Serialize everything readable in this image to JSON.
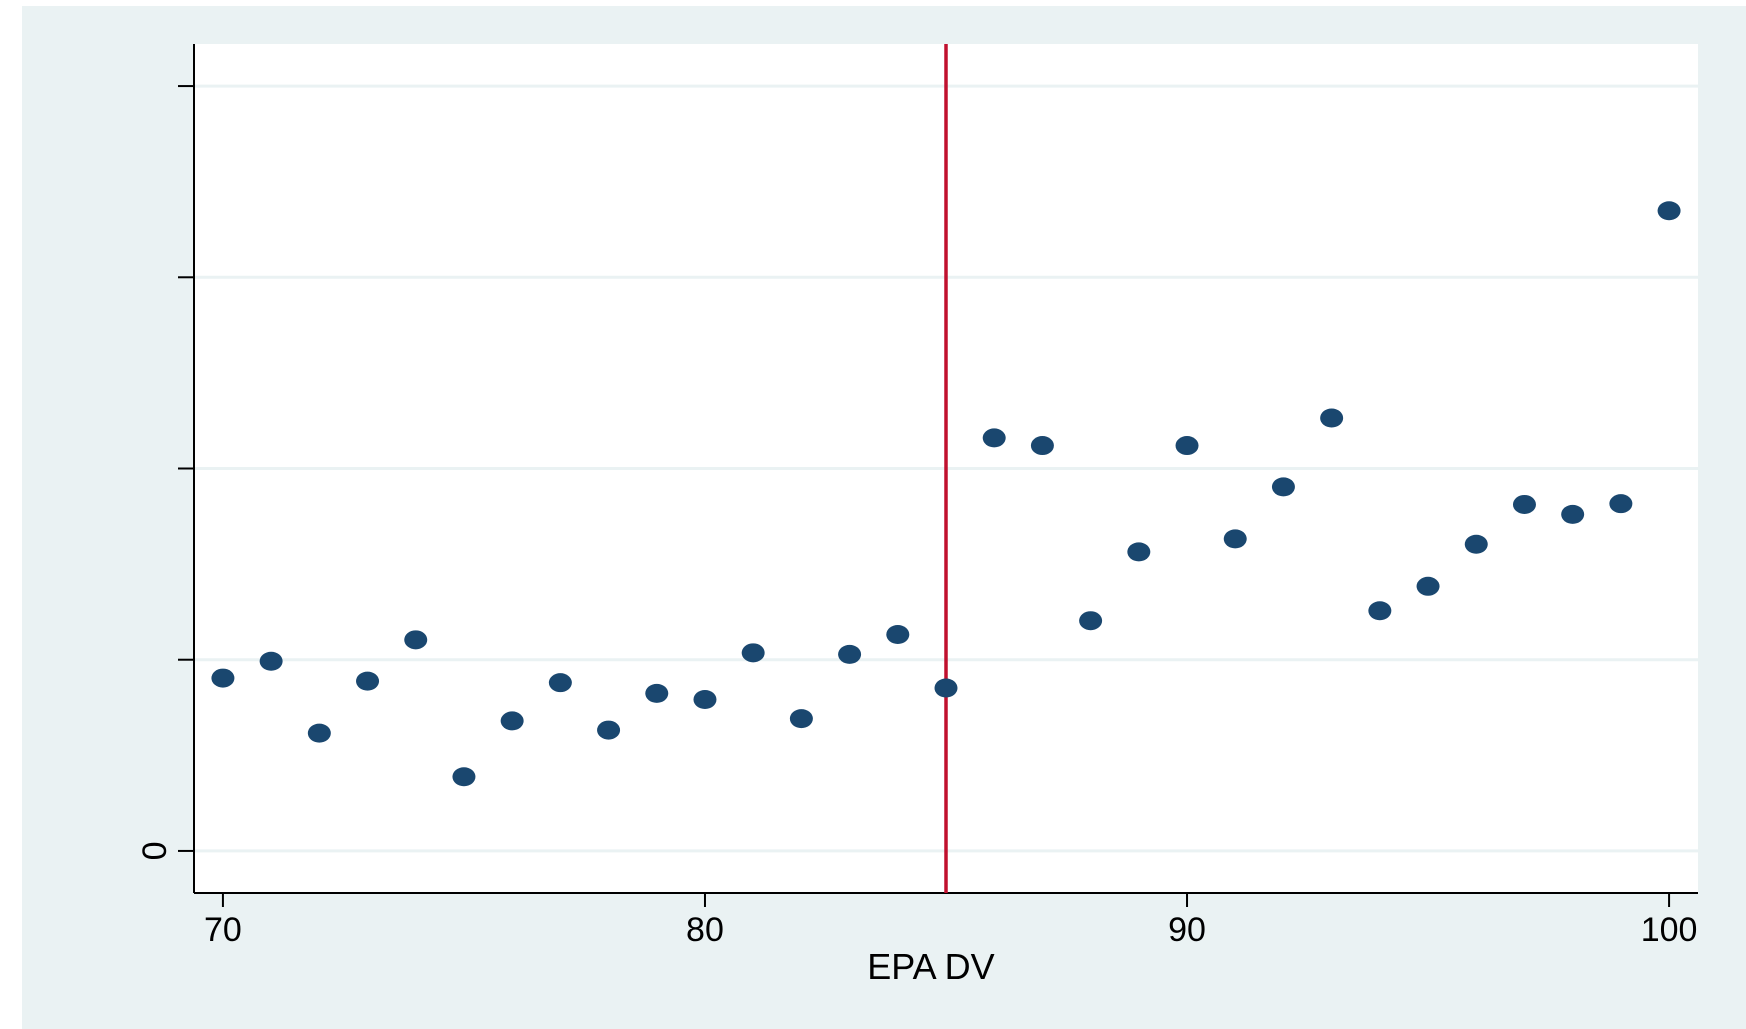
{
  "chart_data": {
    "type": "scatter",
    "title": "",
    "xlabel": "EPA DV",
    "ylabel": "",
    "xlim": [
      69.4,
      100.6
    ],
    "ylim": [
      -0.055,
      1.055
    ],
    "x_ticks": [
      70,
      80,
      90,
      100
    ],
    "x_tick_labels": [
      "70",
      "80",
      "90",
      "100"
    ],
    "y_ticks": [
      0,
      0.25,
      0.5,
      0.75,
      1.0
    ],
    "y_tick_labels": [
      "0",
      "",
      "",
      "",
      ""
    ],
    "grid": true,
    "legend": "none",
    "cutoff_line": {
      "x": 85,
      "color": "#c0102e"
    },
    "series": [
      {
        "color": "#1a476f",
        "points": [
          {
            "x": 70,
            "y": 0.226
          },
          {
            "x": 71,
            "y": 0.248
          },
          {
            "x": 72,
            "y": 0.154
          },
          {
            "x": 73,
            "y": 0.222
          },
          {
            "x": 74,
            "y": 0.276
          },
          {
            "x": 75,
            "y": 0.097
          },
          {
            "x": 76,
            "y": 0.17
          },
          {
            "x": 77,
            "y": 0.22
          },
          {
            "x": 78,
            "y": 0.158
          },
          {
            "x": 79,
            "y": 0.206
          },
          {
            "x": 80,
            "y": 0.198
          },
          {
            "x": 81,
            "y": 0.259
          },
          {
            "x": 82,
            "y": 0.173
          },
          {
            "x": 83,
            "y": 0.257
          },
          {
            "x": 84,
            "y": 0.283
          },
          {
            "x": 85,
            "y": 0.213
          },
          {
            "x": 86,
            "y": 0.54
          },
          {
            "x": 87,
            "y": 0.53
          },
          {
            "x": 88,
            "y": 0.301
          },
          {
            "x": 89,
            "y": 0.391
          },
          {
            "x": 90,
            "y": 0.53
          },
          {
            "x": 91,
            "y": 0.408
          },
          {
            "x": 92,
            "y": 0.476
          },
          {
            "x": 93,
            "y": 0.566
          },
          {
            "x": 94,
            "y": 0.314
          },
          {
            "x": 95,
            "y": 0.346
          },
          {
            "x": 96,
            "y": 0.401
          },
          {
            "x": 97,
            "y": 0.453
          },
          {
            "x": 98,
            "y": 0.44
          },
          {
            "x": 99,
            "y": 0.454
          },
          {
            "x": 100,
            "y": 0.837
          }
        ]
      }
    ]
  },
  "colors": {
    "outer_background": "#eaf2f3",
    "plot_background": "#ffffff",
    "grid": "#eaf2f3",
    "axis": "#000000"
  }
}
